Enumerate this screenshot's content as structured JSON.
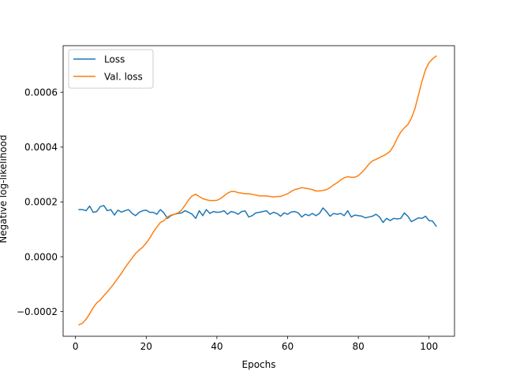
{
  "chart_data": {
    "type": "line",
    "xlabel": "Epochs",
    "ylabel": "Negative log-likelihood",
    "xlim": [
      -3.5,
      107.2
    ],
    "ylim": [
      -0.00029,
      0.00077
    ],
    "xticks": [
      0,
      20,
      40,
      60,
      80,
      100
    ],
    "xtick_labels": [
      "0",
      "20",
      "40",
      "60",
      "80",
      "100"
    ],
    "yticks": [
      -0.0002,
      0.0,
      0.0002,
      0.0004,
      0.0006
    ],
    "ytick_labels": [
      "−0.0002",
      "0.0000",
      "0.0002",
      "0.0004",
      "0.0006"
    ],
    "grid": false,
    "legend_position": "upper left",
    "series": [
      {
        "name": "Loss",
        "color": "#1f77b4",
        "x": [
          1,
          2,
          3,
          4,
          5,
          6,
          7,
          8,
          9,
          10,
          11,
          12,
          13,
          14,
          15,
          16,
          17,
          18,
          19,
          20,
          21,
          22,
          23,
          24,
          25,
          26,
          27,
          28,
          29,
          30,
          31,
          32,
          33,
          34,
          35,
          36,
          37,
          38,
          39,
          40,
          41,
          42,
          43,
          44,
          45,
          46,
          47,
          48,
          49,
          50,
          51,
          52,
          53,
          54,
          55,
          56,
          57,
          58,
          59,
          60,
          61,
          62,
          63,
          64,
          65,
          66,
          67,
          68,
          69,
          70,
          71,
          72,
          73,
          74,
          75,
          76,
          77,
          78,
          79,
          80,
          81,
          82,
          83,
          84,
          85,
          86,
          87,
          88,
          89,
          90,
          91,
          92,
          93,
          94,
          95,
          96,
          97,
          98,
          99,
          100,
          101,
          102
        ],
        "y": [
          0.000172,
          0.000172,
          0.000168,
          0.000185,
          0.000162,
          0.000165,
          0.000183,
          0.000187,
          0.000168,
          0.000172,
          0.000152,
          0.00017,
          0.000163,
          0.000168,
          0.000172,
          0.000158,
          0.00015,
          0.000162,
          0.000168,
          0.00017,
          0.000162,
          0.000162,
          0.000155,
          0.000172,
          0.00016,
          0.00014,
          0.00015,
          0.000155,
          0.000158,
          0.00016,
          0.000168,
          0.000162,
          0.000155,
          0.00014,
          0.000168,
          0.00015,
          0.000172,
          0.000158,
          0.000165,
          0.000162,
          0.000163,
          0.000168,
          0.000155,
          0.000165,
          0.000162,
          0.000155,
          0.000165,
          0.000167,
          0.000145,
          0.00015,
          0.00016,
          0.000162,
          0.000165,
          0.000168,
          0.000155,
          0.000162,
          0.000158,
          0.000148,
          0.00016,
          0.000155,
          0.000163,
          0.000165,
          0.00016,
          0.000145,
          0.000155,
          0.00015,
          0.000158,
          0.00015,
          0.000158,
          0.000178,
          0.000165,
          0.000148,
          0.000158,
          0.000155,
          0.000158,
          0.00015,
          0.000168,
          0.000145,
          0.000152,
          0.00015,
          0.000148,
          0.000142,
          0.000145,
          0.000148,
          0.000155,
          0.000145,
          0.000125,
          0.00014,
          0.000132,
          0.00014,
          0.000138,
          0.00014,
          0.00016,
          0.000148,
          0.000128,
          0.000135,
          0.000142,
          0.00014,
          0.000148,
          0.000132,
          0.00013,
          0.000112
        ]
      },
      {
        "name": "Val. loss",
        "color": "#ff7f0e",
        "x": [
          1,
          2,
          3,
          4,
          5,
          6,
          7,
          8,
          9,
          10,
          11,
          12,
          13,
          14,
          15,
          16,
          17,
          18,
          19,
          20,
          21,
          22,
          23,
          24,
          25,
          26,
          27,
          28,
          29,
          30,
          31,
          32,
          33,
          34,
          35,
          36,
          37,
          38,
          39,
          40,
          41,
          42,
          43,
          44,
          45,
          46,
          47,
          48,
          49,
          50,
          51,
          52,
          53,
          54,
          55,
          56,
          57,
          58,
          59,
          60,
          61,
          62,
          63,
          64,
          65,
          66,
          67,
          68,
          69,
          70,
          71,
          72,
          73,
          74,
          75,
          76,
          77,
          78,
          79,
          80,
          81,
          82,
          83,
          84,
          85,
          86,
          87,
          88,
          89,
          90,
          91,
          92,
          93,
          94,
          95,
          96,
          97,
          98,
          99,
          100,
          101,
          102
        ],
        "y": [
          -0.000248,
          -0.000242,
          -0.000228,
          -0.000208,
          -0.000186,
          -0.000168,
          -0.000158,
          -0.000142,
          -0.000128,
          -0.000112,
          -9.6e-05,
          -7.8e-05,
          -6e-05,
          -4e-05,
          -2.2e-05,
          -5e-06,
          1.2e-05,
          2.4e-05,
          3.5e-05,
          5e-05,
          6.8e-05,
          9e-05,
          0.000108,
          0.000125,
          0.000132,
          0.000145,
          0.000152,
          0.000155,
          0.00016,
          0.00017,
          0.000188,
          0.000208,
          0.000222,
          0.000228,
          0.00022,
          0.000212,
          0.000208,
          0.000205,
          0.000205,
          0.000206,
          0.000212,
          0.000222,
          0.000232,
          0.000238,
          0.000238,
          0.000234,
          0.000232,
          0.00023,
          0.00023,
          0.000228,
          0.000225,
          0.000222,
          0.000222,
          0.000222,
          0.00022,
          0.000218,
          0.00022,
          0.00022,
          0.000225,
          0.00023,
          0.000238,
          0.000245,
          0.000248,
          0.000252,
          0.00025,
          0.000248,
          0.000245,
          0.00024,
          0.00024,
          0.000242,
          0.000245,
          0.000252,
          0.000262,
          0.00027,
          0.00028,
          0.000288,
          0.000292,
          0.00029,
          0.00029,
          0.000296,
          0.000308,
          0.000322,
          0.000338,
          0.00035,
          0.000355,
          0.000362,
          0.000368,
          0.000375,
          0.000385,
          0.000405,
          0.000432,
          0.000455,
          0.00047,
          0.000482,
          0.000505,
          0.00054,
          0.00059,
          0.00064,
          0.000682,
          0.000708,
          0.000722,
          0.000732
        ]
      }
    ]
  }
}
